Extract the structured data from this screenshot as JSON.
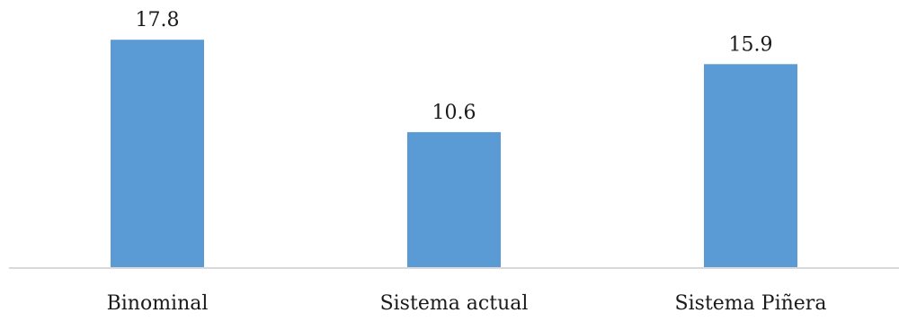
{
  "chart_data": {
    "type": "bar",
    "categories": [
      "Binominal",
      "Sistema actual",
      "Sistema Piñera"
    ],
    "values": [
      17.8,
      10.6,
      15.9
    ],
    "data_labels": [
      "17.8",
      "10.6",
      "15.9"
    ],
    "title": "",
    "xlabel": "",
    "ylabel": "",
    "ylim": [
      0,
      20.9
    ],
    "grid": false,
    "legend": "none",
    "colors": {
      "bar": "#5b9bd5",
      "axis": "#d9d9d9",
      "text": "#1a1a1a"
    }
  }
}
